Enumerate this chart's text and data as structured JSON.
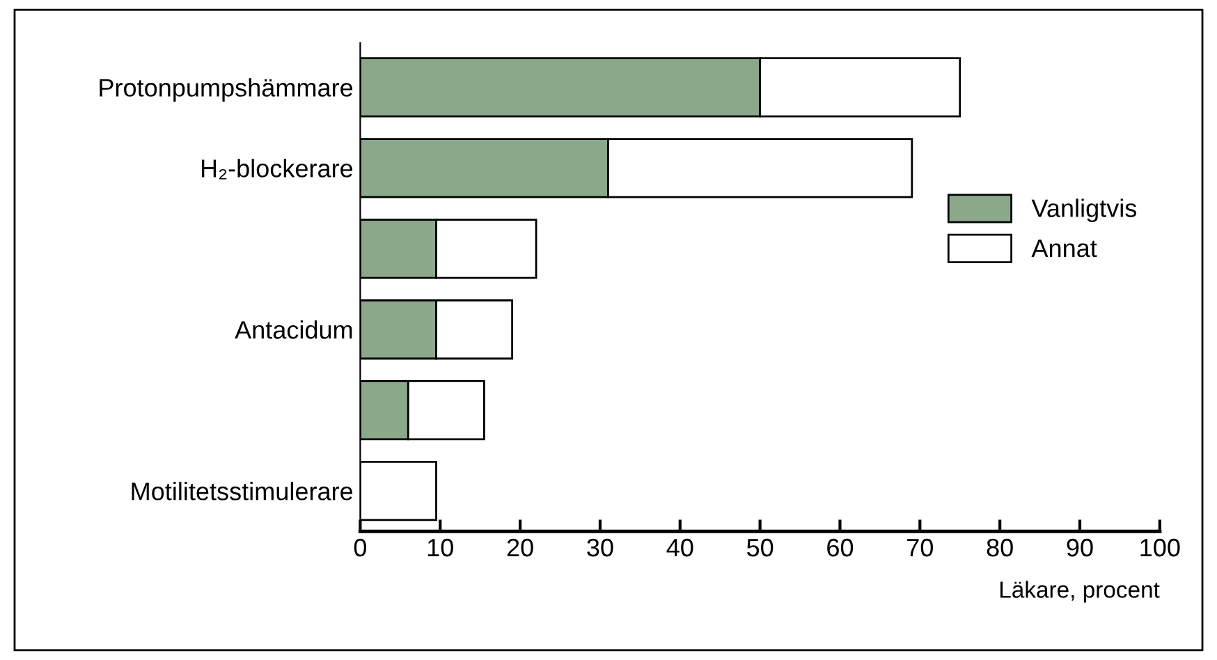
{
  "chart_data": {
    "type": "bar",
    "orientation": "horizontal",
    "stacked": true,
    "categories": [
      "Protonpumpshämmare",
      "H₂-blockerare",
      null,
      "Antacidum",
      null,
      "Motilitetsstimulerare"
    ],
    "series": [
      {
        "name": "Vanligtvis",
        "color": "#8ba88a",
        "values": [
          50,
          31,
          9.5,
          9.5,
          6,
          0
        ]
      },
      {
        "name": "Annat",
        "color": "#ffffff",
        "values": [
          25,
          38,
          12.5,
          9.5,
          9.5,
          9.5
        ]
      }
    ],
    "xlabel": "Läkare, procent",
    "xlim": [
      0,
      100
    ],
    "xticks": [
      0,
      10,
      20,
      30,
      40,
      50,
      60,
      70,
      80,
      90,
      100
    ],
    "grid": false,
    "legend": "right"
  }
}
